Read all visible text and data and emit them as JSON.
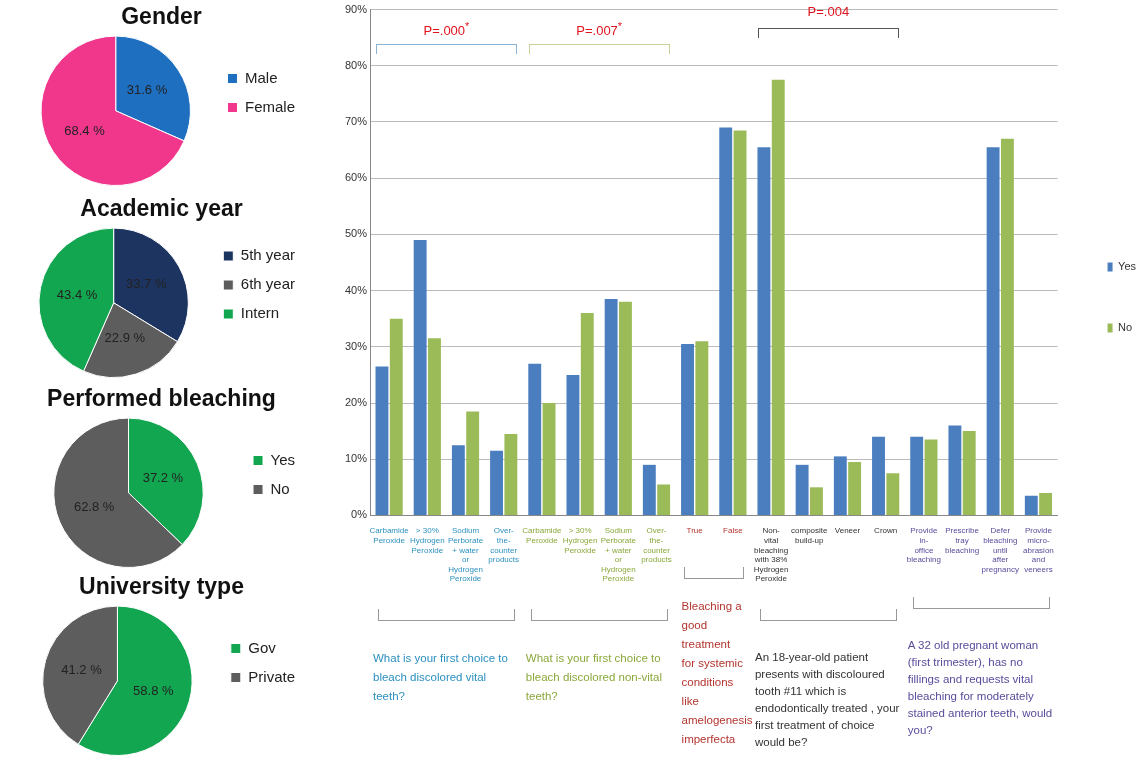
{
  "chart_data": [
    {
      "type": "pie",
      "title": "Gender",
      "categories": [
        "Male",
        "Female"
      ],
      "values": [
        31.6,
        68.4
      ],
      "colors": [
        "#1f6fc0",
        "#f0378c"
      ],
      "value_labels": [
        "31.6 %",
        "68.4 %"
      ],
      "legend": "right"
    },
    {
      "type": "pie",
      "title": "Academic year",
      "categories": [
        "5th year",
        "6th year",
        "Intern"
      ],
      "values": [
        33.7,
        22.9,
        43.4
      ],
      "colors": [
        "#1d3461",
        "#5d5d5d",
        "#13a650"
      ],
      "value_labels": [
        "33.7 %",
        "22.9 %",
        "43.4 %"
      ],
      "legend": "right"
    },
    {
      "type": "pie",
      "title": "Performed bleaching",
      "categories": [
        "Yes",
        "No"
      ],
      "values": [
        37.2,
        62.8
      ],
      "colors": [
        "#13a650",
        "#5d5d5d"
      ],
      "value_labels": [
        "37.2 %",
        "62.8 %"
      ],
      "legend": "right"
    },
    {
      "type": "pie",
      "title": "University type",
      "categories": [
        "Gov",
        "Private"
      ],
      "values": [
        58.8,
        41.2
      ],
      "colors": [
        "#13a650",
        "#5d5d5d"
      ],
      "value_labels": [
        "58.8 %",
        "41.2 %"
      ],
      "legend": "right"
    },
    {
      "type": "bar",
      "categories": [
        "Carbamide Peroxide",
        "> 30% Hydrogen Peroxide",
        "Sodium Perborate + water or Hydrogen Peroxide",
        "Over-the-counter products",
        "Carbamide Peroxide",
        "> 30% Hydrogen Peroxide",
        "Sodium Perborate + water or Hydrogen Peroxide",
        "Over-the-counter products",
        "True",
        "False",
        "Non-vital bleaching with 38% Hydrogen Peroxide",
        "composite build-up",
        "Veneer",
        "Crown",
        "Provide in-office bleaching",
        "Prescribe tray bleaching",
        "Defer bleaching until after pregnancy",
        "Provide micro-abrasion and veneers"
      ],
      "series": [
        {
          "name": "Yes",
          "color": "#4a7ebf",
          "values": [
            26.5,
            49,
            12.5,
            11.5,
            27,
            25,
            38.5,
            9,
            30.5,
            69,
            65.5,
            9,
            10.5,
            14,
            14,
            16,
            65.5,
            3.5
          ]
        },
        {
          "name": "No",
          "color": "#9bbb59",
          "values": [
            35,
            31.5,
            18.5,
            14.5,
            20,
            36,
            38,
            5.5,
            31,
            68.5,
            77.5,
            5,
            9.5,
            7.5,
            13.5,
            15,
            67,
            4
          ]
        }
      ],
      "ylim": [
        0,
        90
      ],
      "yticks": [
        {
          "value": 0,
          "label": "0%"
        },
        {
          "value": 10,
          "label": "10%"
        },
        {
          "value": 20,
          "label": "20%"
        },
        {
          "value": 30,
          "label": "30%"
        },
        {
          "value": 40,
          "label": "40%"
        },
        {
          "value": 50,
          "label": "50%"
        },
        {
          "value": 60,
          "label": "60%"
        },
        {
          "value": 70,
          "label": "70%"
        },
        {
          "value": 80,
          "label": "80%"
        },
        {
          "value": 90,
          "label": "90%"
        }
      ],
      "grid": "y",
      "legend": "right",
      "annotations": [
        "P=.000$^{*}$",
        "P=.007$^{*}$",
        "P=.004",
        "What is your first choice to bleach discolored vital teeth?",
        "What is your first choice to bleach discolored non-vital teeth?",
        "Bleaching a good treatment for systemic conditions like amelogenesis imperfecta",
        "An 18-year-old patient presents with discoloured tooth #11 which is endodontically treated , your first treatment of choice would be?",
        "A 32 old pregnant woman (first trimester), has no fillings and requests vital bleaching for moderately stained anterior teeth, would you?"
      ]
    }
  ]
}
